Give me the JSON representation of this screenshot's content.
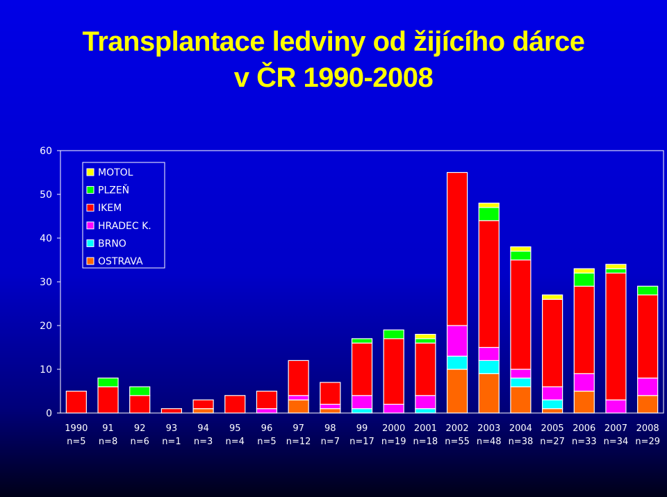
{
  "chart_data": {
    "type": "bar",
    "stacked": true,
    "title_lines": [
      "Transplantace ledviny od žijícího dárce",
      "v ČR 1990-2008"
    ],
    "categories": [
      "1990",
      "91",
      "92",
      "93",
      "94",
      "95",
      "96",
      "97",
      "98",
      "99",
      "2000",
      "2001",
      "2002",
      "2003",
      "2004",
      "2005",
      "2006",
      "2007",
      "2008"
    ],
    "category_counts": [
      "n=5",
      "n=8",
      "n=6",
      "n=1",
      "n=3",
      "n=4",
      "n=5",
      "n=12",
      "n=7",
      "n=17",
      "n=19",
      "n=18",
      "n=55",
      "n=48",
      "n=38",
      "n=27",
      "n=33",
      "n=34",
      "n=29"
    ],
    "ylim": [
      0,
      60
    ],
    "yticks": [
      0,
      10,
      20,
      30,
      40,
      50,
      60
    ],
    "grid": false,
    "legend_placement": "top-left",
    "legend_order": [
      "MOTOL",
      "PLZEŇ",
      "IKEM",
      "HRADEC K.",
      "BRNO",
      "OSTRAVA"
    ],
    "stack_order": [
      "OSTRAVA",
      "BRNO",
      "HRADEC K.",
      "IKEM",
      "PLZEŇ",
      "MOTOL"
    ],
    "series": [
      {
        "name": "OSTRAVA",
        "color": "#ff6600",
        "values": [
          0,
          0,
          0,
          0,
          1,
          0,
          0,
          3,
          1,
          0,
          0,
          0,
          10,
          9,
          6,
          1,
          5,
          0,
          4
        ]
      },
      {
        "name": "BRNO",
        "color": "#00ffff",
        "values": [
          0,
          0,
          0,
          0,
          0,
          0,
          0,
          0,
          0,
          1,
          0,
          1,
          3,
          3,
          2,
          2,
          0,
          0,
          0
        ]
      },
      {
        "name": "HRADEC K.",
        "color": "#ff00ff",
        "values": [
          0,
          0,
          0,
          0,
          0,
          0,
          1,
          1,
          1,
          3,
          2,
          3,
          7,
          3,
          2,
          3,
          4,
          3,
          4
        ]
      },
      {
        "name": "IKEM",
        "color": "#ff0000",
        "values": [
          5,
          6,
          4,
          1,
          2,
          4,
          4,
          8,
          5,
          12,
          15,
          12,
          35,
          29,
          25,
          20,
          20,
          29,
          19
        ]
      },
      {
        "name": "PLZEŇ",
        "color": "#00ff00",
        "values": [
          0,
          2,
          2,
          0,
          0,
          0,
          0,
          0,
          0,
          1,
          2,
          1,
          0,
          3,
          2,
          0,
          3,
          1,
          2
        ]
      },
      {
        "name": "MOTOL",
        "color": "#ffff00",
        "values": [
          0,
          0,
          0,
          0,
          0,
          0,
          0,
          0,
          0,
          0,
          0,
          1,
          0,
          1,
          1,
          1,
          1,
          1,
          0
        ]
      }
    ]
  }
}
